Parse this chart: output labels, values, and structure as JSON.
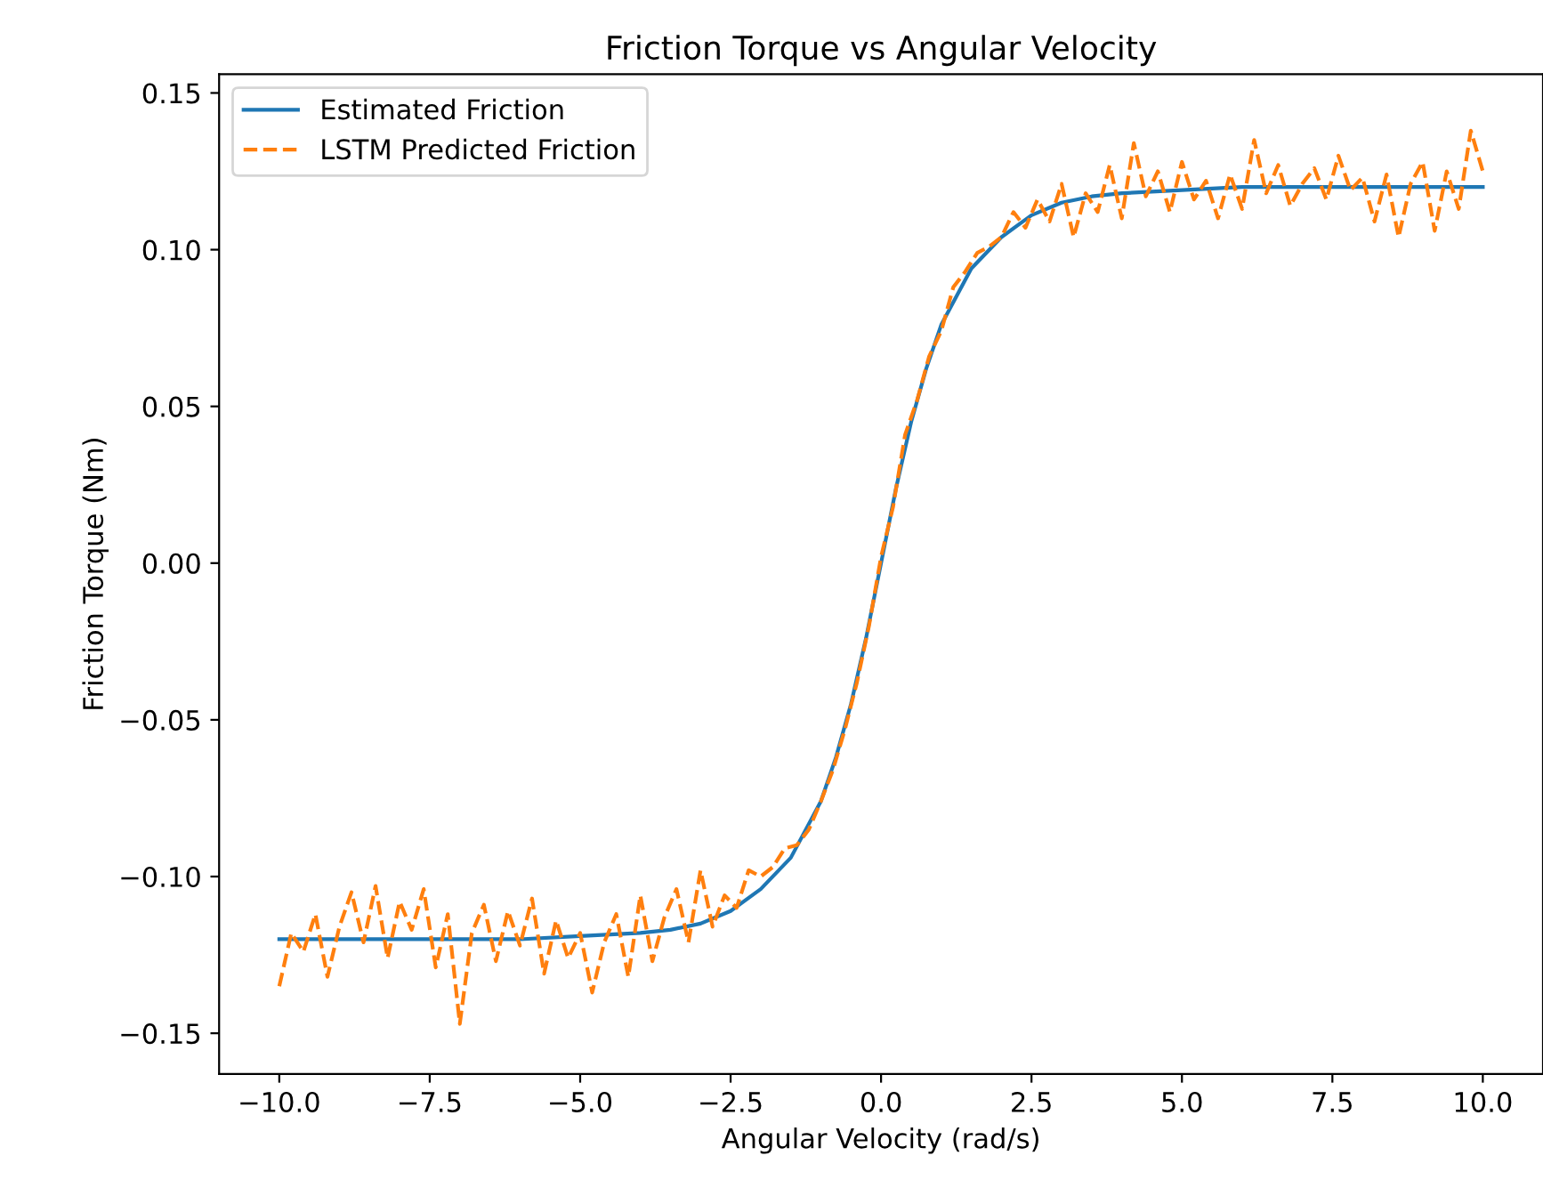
{
  "chart_data": {
    "type": "line",
    "title": "Friction Torque vs Angular Velocity",
    "xlabel": "Angular Velocity (rad/s)",
    "ylabel": "Friction Torque (Nm)",
    "xlim": [
      -11,
      11
    ],
    "ylim": [
      -0.163,
      0.156
    ],
    "xticks": [
      {
        "value": -10,
        "label": "−10.0"
      },
      {
        "value": -7.5,
        "label": "−7.5"
      },
      {
        "value": -5,
        "label": "−5.0"
      },
      {
        "value": -2.5,
        "label": "−2.5"
      },
      {
        "value": 0,
        "label": "0.0"
      },
      {
        "value": 2.5,
        "label": "2.5"
      },
      {
        "value": 5,
        "label": "5.0"
      },
      {
        "value": 7.5,
        "label": "7.5"
      },
      {
        "value": 10,
        "label": "10.0"
      }
    ],
    "yticks": [
      {
        "value": -0.15,
        "label": "−0.15"
      },
      {
        "value": -0.1,
        "label": "−0.10"
      },
      {
        "value": -0.05,
        "label": "−0.05"
      },
      {
        "value": 0,
        "label": "0.00"
      },
      {
        "value": 0.05,
        "label": "0.05"
      },
      {
        "value": 0.1,
        "label": "0.10"
      },
      {
        "value": 0.15,
        "label": "0.15"
      }
    ],
    "legend": "top left",
    "grid": false,
    "marker": "none",
    "series": [
      {
        "name": "Estimated Friction",
        "color": "#1f77b4",
        "line_style": "solid",
        "x": [
          -10,
          -8,
          -6,
          -5,
          -4,
          -3.5,
          -3,
          -2.5,
          -2,
          -1.5,
          -1,
          -0.75,
          -0.5,
          -0.25,
          0,
          0.25,
          0.5,
          0.75,
          1,
          1.5,
          2,
          2.5,
          3,
          3.5,
          4,
          5,
          6,
          8,
          10
        ],
        "values": [
          -0.12,
          -0.12,
          -0.12,
          -0.119,
          -0.118,
          -0.117,
          -0.115,
          -0.111,
          -0.104,
          -0.094,
          -0.076,
          -0.062,
          -0.045,
          -0.024,
          0,
          0.024,
          0.045,
          0.062,
          0.076,
          0.094,
          0.104,
          0.111,
          0.115,
          0.117,
          0.118,
          0.119,
          0.12,
          0.12,
          0.12
        ]
      },
      {
        "name": "LSTM Predicted Friction",
        "color": "#ff7f0e",
        "line_style": "dashed",
        "x": [
          -10.0,
          -9.8,
          -9.6,
          -9.4,
          -9.2,
          -9.0,
          -8.8,
          -8.6,
          -8.4,
          -8.2,
          -8.0,
          -7.8,
          -7.6,
          -7.4,
          -7.2,
          -7.0,
          -6.8,
          -6.6,
          -6.4,
          -6.2,
          -6.0,
          -5.8,
          -5.6,
          -5.4,
          -5.2,
          -5.0,
          -4.8,
          -4.6,
          -4.4,
          -4.2,
          -4.0,
          -3.8,
          -3.6,
          -3.4,
          -3.2,
          -3.0,
          -2.8,
          -2.6,
          -2.4,
          -2.2,
          -2.0,
          -1.8,
          -1.6,
          -1.4,
          -1.2,
          -1.0,
          -0.8,
          -0.6,
          -0.4,
          -0.2,
          0.0,
          0.2,
          0.4,
          0.6,
          0.8,
          1.0,
          1.2,
          1.4,
          1.6,
          1.8,
          2.0,
          2.2,
          2.4,
          2.6,
          2.8,
          3.0,
          3.2,
          3.4,
          3.6,
          3.8,
          4.0,
          4.2,
          4.4,
          4.6,
          4.8,
          5.0,
          5.2,
          5.4,
          5.6,
          5.8,
          6.0,
          6.2,
          6.4,
          6.6,
          6.8,
          7.0,
          7.2,
          7.4,
          7.6,
          7.8,
          8.0,
          8.2,
          8.4,
          8.6,
          8.8,
          9.0,
          9.2,
          9.4,
          9.6,
          9.8,
          10.0
        ],
        "values": [
          -0.135,
          -0.118,
          -0.124,
          -0.112,
          -0.132,
          -0.116,
          -0.105,
          -0.121,
          -0.103,
          -0.126,
          -0.108,
          -0.117,
          -0.104,
          -0.129,
          -0.112,
          -0.147,
          -0.118,
          -0.109,
          -0.127,
          -0.111,
          -0.122,
          -0.107,
          -0.131,
          -0.114,
          -0.126,
          -0.118,
          -0.137,
          -0.121,
          -0.112,
          -0.132,
          -0.106,
          -0.127,
          -0.113,
          -0.104,
          -0.121,
          -0.098,
          -0.116,
          -0.106,
          -0.11,
          -0.098,
          -0.1,
          -0.097,
          -0.091,
          -0.09,
          -0.085,
          -0.076,
          -0.066,
          -0.053,
          -0.038,
          -0.02,
          0.002,
          0.018,
          0.041,
          0.052,
          0.066,
          0.074,
          0.088,
          0.093,
          0.099,
          0.101,
          0.104,
          0.112,
          0.107,
          0.116,
          0.109,
          0.121,
          0.104,
          0.118,
          0.112,
          0.127,
          0.11,
          0.134,
          0.117,
          0.125,
          0.112,
          0.128,
          0.116,
          0.122,
          0.11,
          0.124,
          0.113,
          0.135,
          0.118,
          0.127,
          0.114,
          0.121,
          0.126,
          0.116,
          0.13,
          0.119,
          0.123,
          0.109,
          0.124,
          0.104,
          0.121,
          0.128,
          0.106,
          0.125,
          0.113,
          0.138,
          0.125
        ]
      }
    ]
  }
}
